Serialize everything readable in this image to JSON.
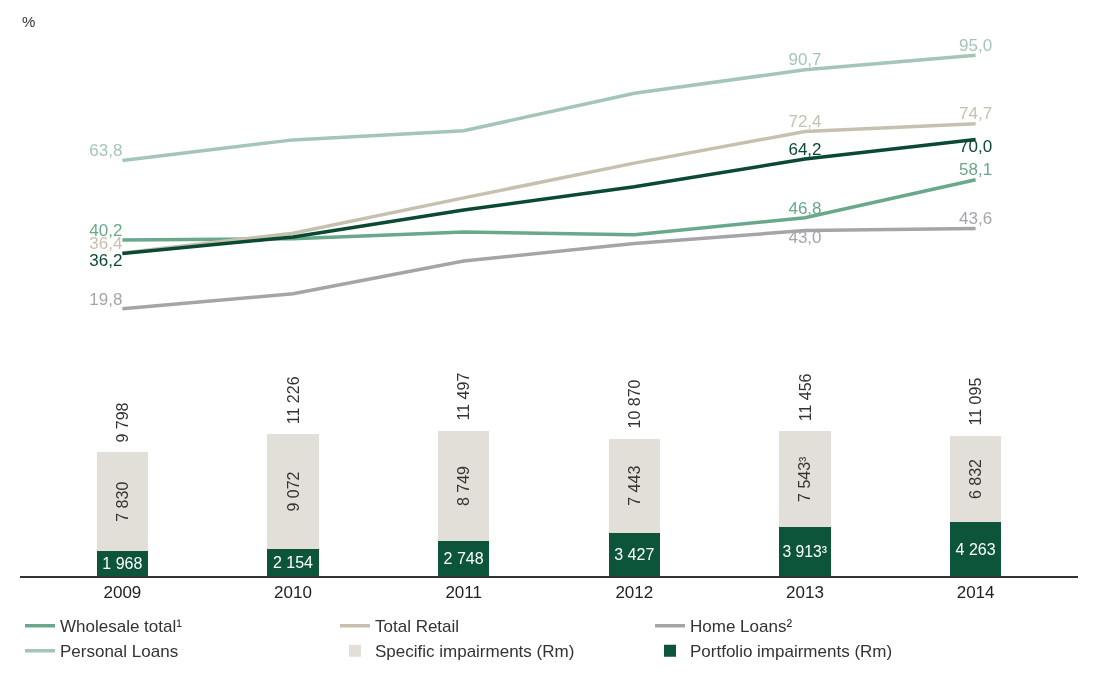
{
  "chart_data": [
    {
      "type": "line",
      "ylabel": "%",
      "categories": [
        "2009",
        "2010",
        "2011",
        "2012",
        "2013",
        "2014"
      ],
      "tick_labels": false,
      "legend": "bottom",
      "marker": "none",
      "line_style": "solid",
      "series": [
        {
          "name": "Wholesale total¹",
          "color": "#6aa88c",
          "values": [
            40.2,
            40.6,
            42.6,
            41.8,
            46.8,
            58.1
          ],
          "value_labels": [
            "40,2",
            null,
            null,
            null,
            "46,8",
            "58,1"
          ]
        },
        {
          "name": "Total Retail",
          "color": "#c6c0ae",
          "values": [
            36.4,
            42.2,
            52.7,
            63.0,
            72.4,
            74.7
          ],
          "value_labels": [
            "36,4",
            null,
            null,
            null,
            "72,4",
            "74,7"
          ]
        },
        {
          "color": "#0b4a32",
          "values": [
            36.2,
            41.1,
            49.1,
            56.0,
            64.2,
            70.0
          ],
          "value_labels": [
            "36,2",
            null,
            null,
            null,
            "64,2",
            "70,0"
          ]
        },
        {
          "name": "Home Loans²",
          "color": "#a6a4a9",
          "values": [
            19.8,
            24.3,
            34.0,
            39.2,
            43.0,
            43.6
          ],
          "value_labels": [
            "19,8",
            null,
            null,
            null,
            "43,0",
            "43,6"
          ]
        },
        {
          "name": "Personal Loans",
          "color": "#a4c6b6",
          "values": [
            63.8,
            69.9,
            72.6,
            83.7,
            90.7,
            95.0
          ],
          "value_labels": [
            "63,8",
            null,
            null,
            null,
            "90,7",
            "95,0"
          ]
        }
      ]
    },
    {
      "type": "bar",
      "stacked": true,
      "categories": [
        "2009",
        "2010",
        "2011",
        "2012",
        "2013",
        "2014"
      ],
      "tick_labels": "x",
      "legend": "bottom",
      "series": [
        {
          "name": "Portfolio impairments (Rm)",
          "color": "#0d553a",
          "values": [
            1968,
            2154,
            2748,
            3427,
            3913,
            4263
          ],
          "value_labels": [
            "1 968",
            "2 154",
            "2 748",
            "3 427",
            "3 913³",
            "4 263"
          ]
        },
        {
          "name": "Specific impairments (Rm)",
          "color": "#e2dfd8",
          "values": [
            7830,
            9072,
            8749,
            7443,
            7543,
            6832
          ],
          "value_labels": [
            "7 830",
            "9 072",
            "8 749",
            "7 443",
            "7 543³",
            "6 832"
          ]
        }
      ],
      "totals": [
        "9 798",
        "11 226",
        "11 497",
        "10 870",
        "11 456",
        "11 095"
      ]
    }
  ]
}
